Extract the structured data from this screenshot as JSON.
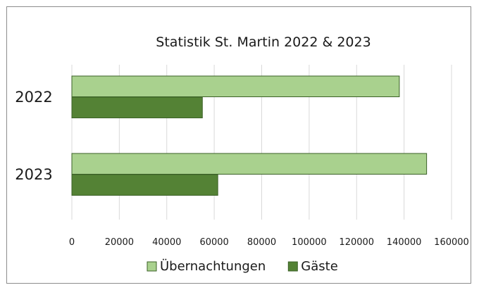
{
  "chart_data": {
    "type": "bar",
    "orientation": "horizontal",
    "title": "Statistik  St. Martin 2022 & 2023",
    "categories": [
      "2022",
      "2023"
    ],
    "series": [
      {
        "name": "Übernachtungen",
        "values": [
          138000,
          149500
        ],
        "color": "#a9d18e"
      },
      {
        "name": "Gäste",
        "values": [
          55000,
          61500
        ],
        "color": "#548235"
      }
    ],
    "xlim": [
      0,
      160000
    ],
    "xticks": [
      0,
      20000,
      40000,
      60000,
      80000,
      100000,
      120000,
      140000,
      160000
    ],
    "grid": true,
    "legend": "bottom"
  }
}
